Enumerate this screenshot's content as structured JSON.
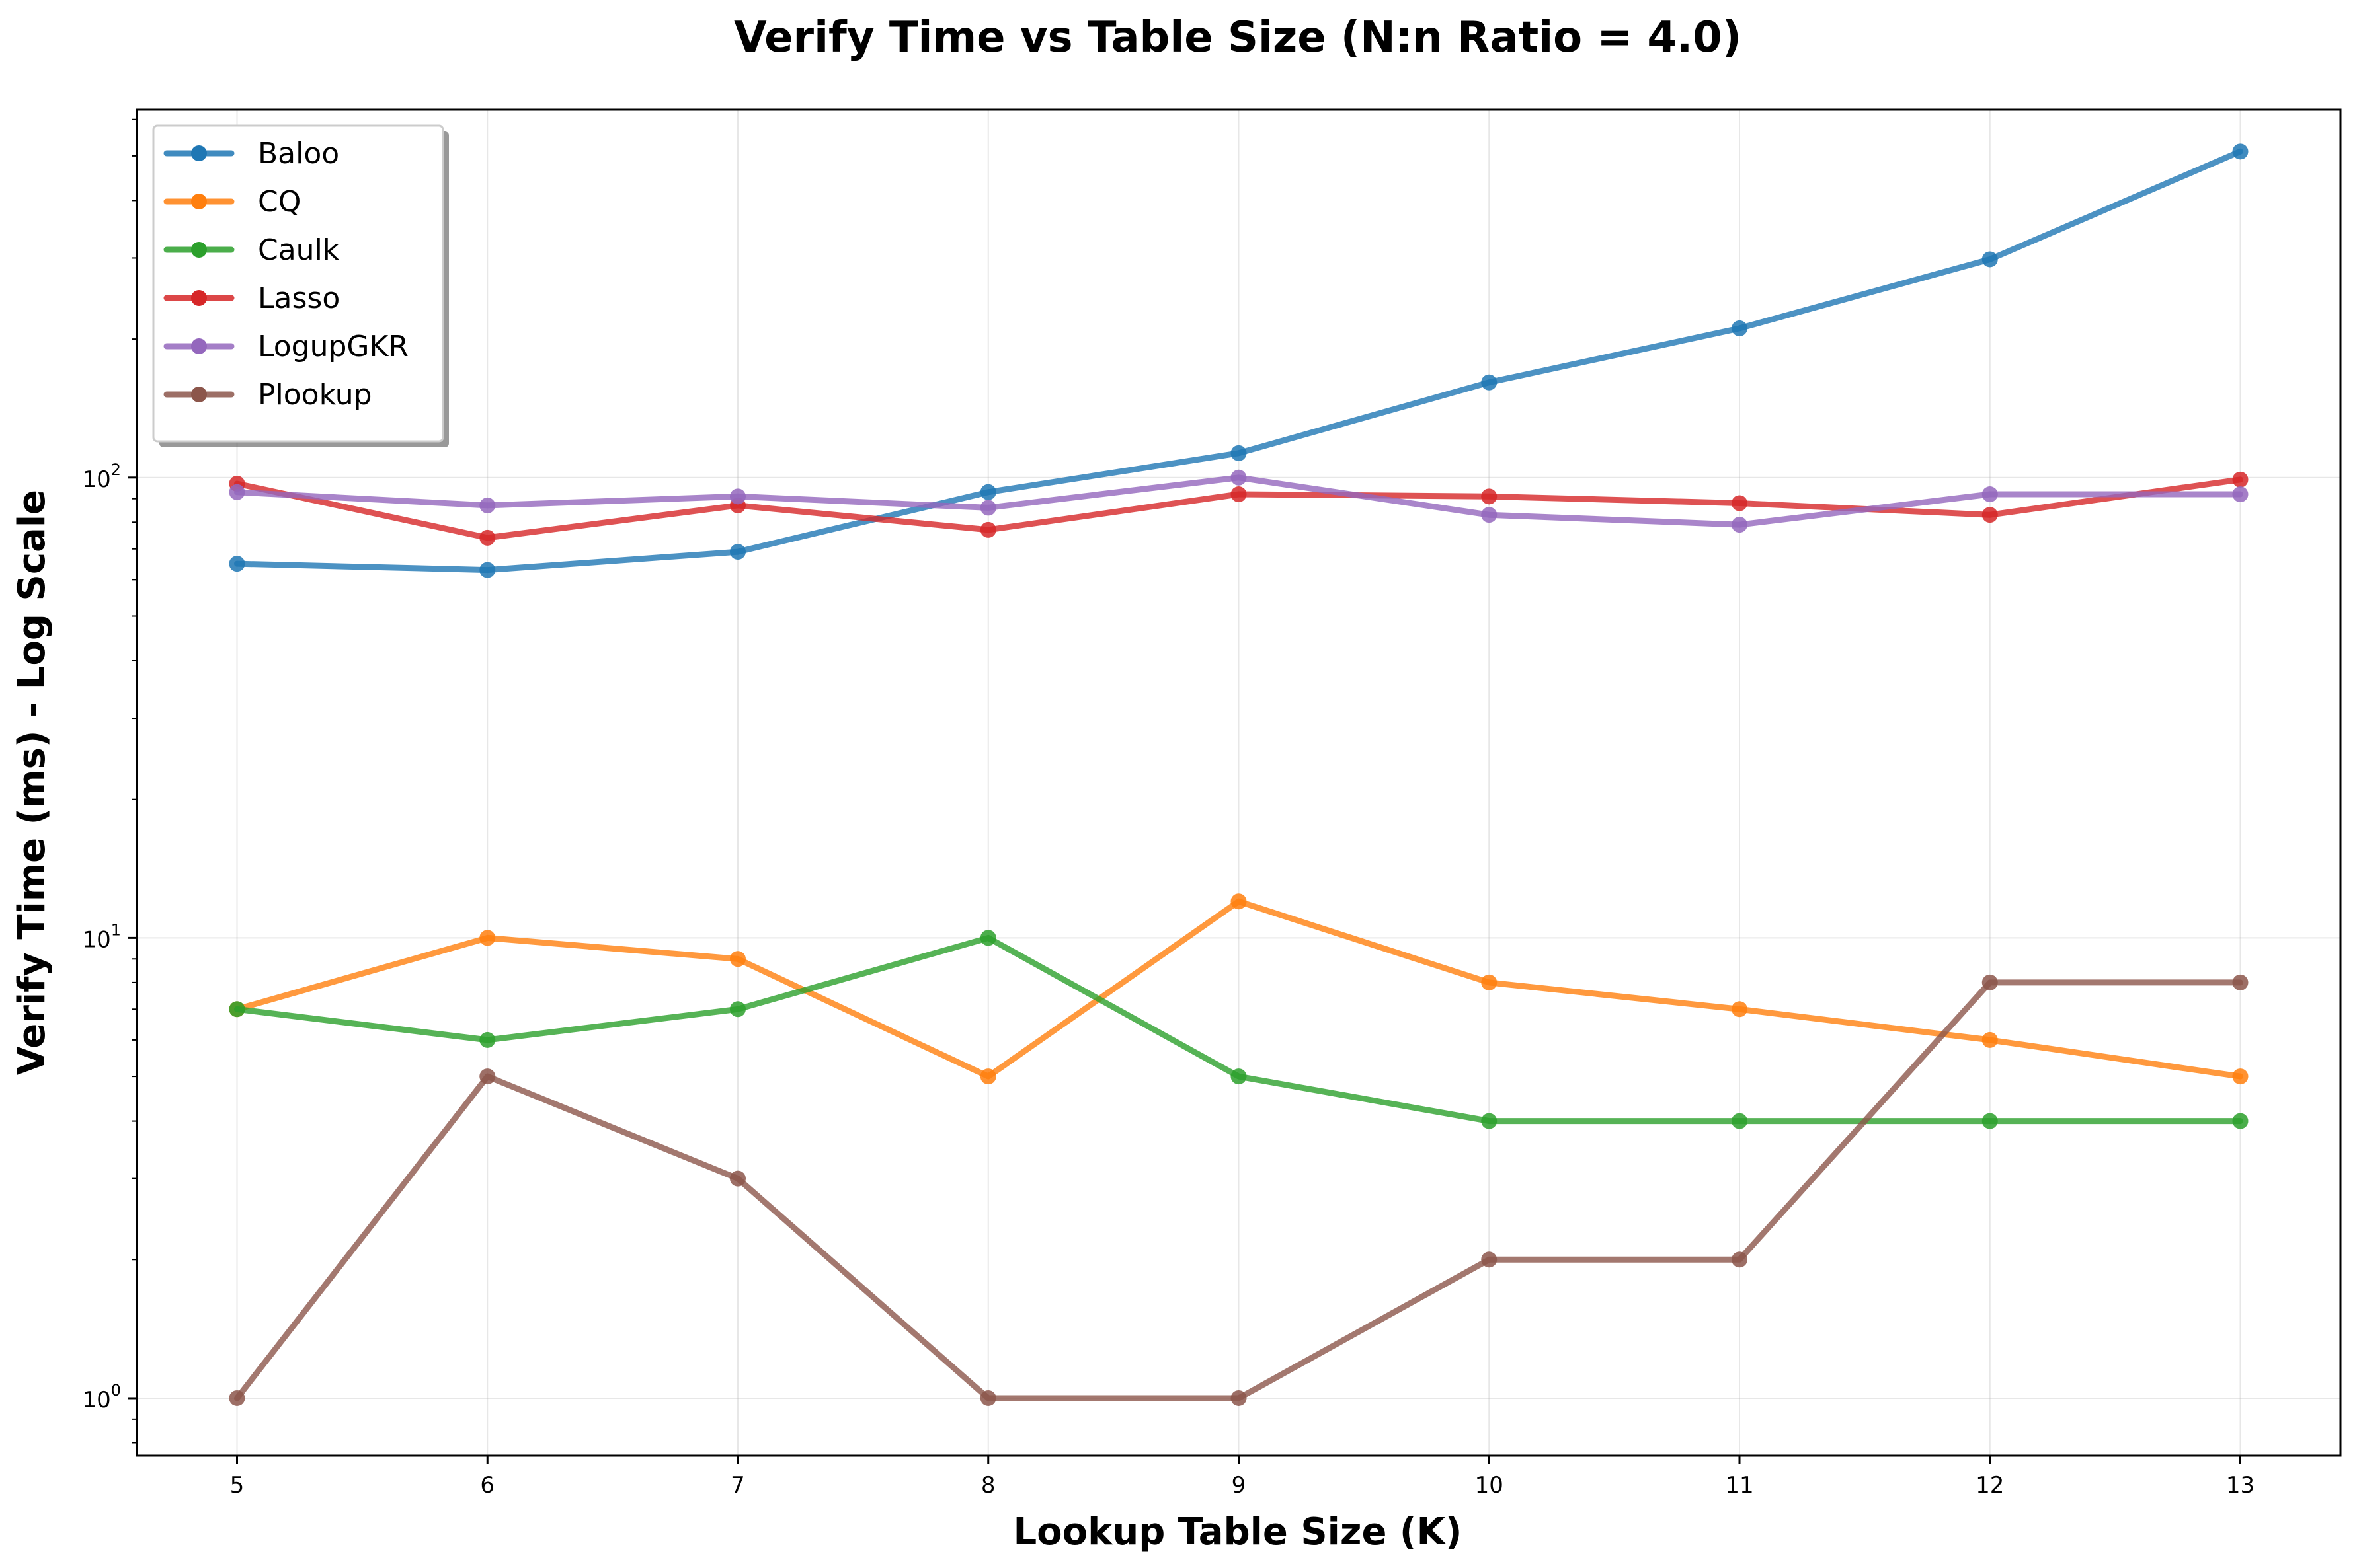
{
  "chart_data": {
    "type": "line",
    "title": "Verify Time vs Table Size (N:n Ratio = 4.0)",
    "xlabel": "Lookup Table Size (K)",
    "ylabel": "Verify Time (ms) - Log Scale",
    "yscale": "log",
    "xlim": [
      4.6,
      13.4
    ],
    "ylim": [
      0.75,
      630
    ],
    "x": [
      5,
      6,
      7,
      8,
      9,
      10,
      11,
      12,
      13
    ],
    "x_ticks": [
      "5",
      "6",
      "7",
      "8",
      "9",
      "10",
      "11",
      "12",
      "13"
    ],
    "y_ticks": [
      {
        "value": 1,
        "base": "10",
        "exp": "0"
      },
      {
        "value": 10,
        "base": "10",
        "exp": "1"
      },
      {
        "value": 100,
        "base": "10",
        "exp": "2"
      }
    ],
    "grid": true,
    "legend_position": "top-left",
    "series": [
      {
        "name": "Baloo",
        "color": "#1f77b4",
        "values": [
          65,
          63,
          69,
          93,
          113,
          161,
          211,
          298,
          511
        ]
      },
      {
        "name": "CQ",
        "color": "#ff7f0e",
        "values": [
          7,
          10,
          9,
          5,
          12,
          8,
          7,
          6,
          5
        ]
      },
      {
        "name": "Caulk",
        "color": "#2ca02c",
        "values": [
          7,
          6,
          7,
          10,
          5,
          4,
          4,
          4,
          4
        ]
      },
      {
        "name": "Lasso",
        "color": "#d62728",
        "values": [
          97,
          74,
          87,
          77,
          92,
          91,
          88,
          83,
          99
        ]
      },
      {
        "name": "LogupGKR",
        "color": "#9467bd",
        "values": [
          93,
          87,
          91,
          86,
          100,
          83,
          79,
          92,
          92
        ]
      },
      {
        "name": "Plookup",
        "color": "#8c564b",
        "values": [
          1,
          5,
          3,
          1,
          1,
          2,
          2,
          8,
          8
        ]
      }
    ]
  }
}
